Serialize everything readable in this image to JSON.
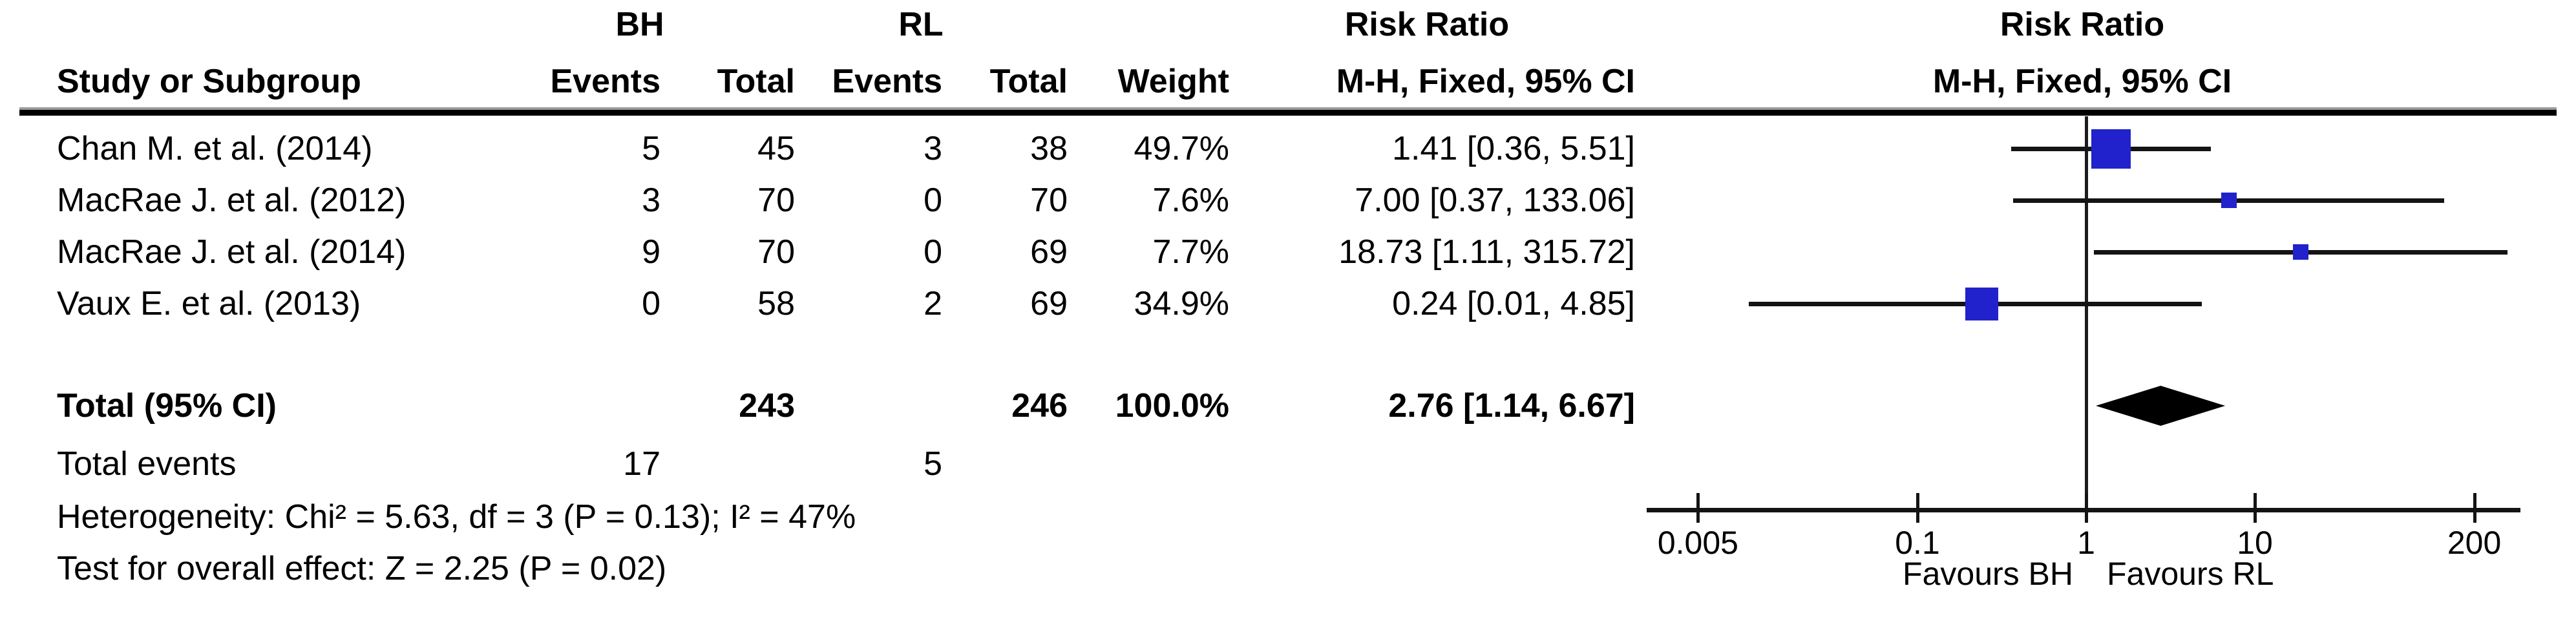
{
  "header": {
    "group1": "BH",
    "group2": "RL",
    "study_col": "Study or Subgroup",
    "events_col": "Events",
    "total_col": "Total",
    "weight_col": "Weight",
    "risk_ratio_table": "Risk Ratio",
    "mh_fixed_table": "M-H, Fixed, 95% CI",
    "risk_ratio_plot": "Risk Ratio",
    "mh_fixed_plot": "M-H, Fixed, 95% CI"
  },
  "rows": [
    {
      "study": "Chan M. et al. (2014)",
      "bh_events": "5",
      "bh_total": "45",
      "rl_events": "3",
      "rl_total": "38",
      "weight": "49.7%",
      "rr_text": "1.41 [0.36, 5.51]"
    },
    {
      "study": "MacRae J. et al. (2012)",
      "bh_events": "3",
      "bh_total": "70",
      "rl_events": "0",
      "rl_total": "70",
      "weight": "7.6%",
      "rr_text": "7.00 [0.37, 133.06]"
    },
    {
      "study": "MacRae J. et al. (2014)",
      "bh_events": "9",
      "bh_total": "70",
      "rl_events": "0",
      "rl_total": "69",
      "weight": "7.7%",
      "rr_text": "18.73 [1.11, 315.72]"
    },
    {
      "study": "Vaux E. et al. (2013)",
      "bh_events": "0",
      "bh_total": "58",
      "rl_events": "2",
      "rl_total": "69",
      "weight": "34.9%",
      "rr_text": "0.24 [0.01, 4.85]"
    }
  ],
  "total_row": {
    "label": "Total (95% CI)",
    "bh_total": "243",
    "rl_total": "246",
    "weight": "100.0%",
    "rr_text": "2.76 [1.14, 6.67]"
  },
  "total_events": {
    "label": "Total events",
    "bh": "17",
    "rl": "5"
  },
  "heterogeneity": "Heterogeneity: Chi² = 5.63, df = 3 (P = 0.13); I² = 47%",
  "overall_effect": "Test for overall effect: Z = 2.25 (P = 0.02)",
  "chart_data": {
    "type": "forest",
    "effect_measure": "Risk Ratio",
    "method": "M-H, Fixed, 95% CI",
    "x_scale": "log10",
    "axis_ticks": [
      0.005,
      0.1,
      1,
      10,
      200
    ],
    "axis_tick_labels": [
      "0.005",
      "0.1",
      "1",
      "10",
      "200"
    ],
    "null_line": 1,
    "favours_left": "Favours BH",
    "favours_right": "Favours RL",
    "studies": [
      {
        "name": "Chan M. et al. (2014)",
        "bh_events": 5,
        "bh_total": 45,
        "rl_events": 3,
        "rl_total": 38,
        "weight_pct": 49.7,
        "rr": 1.41,
        "ci_low": 0.36,
        "ci_high": 5.51
      },
      {
        "name": "MacRae J. et al. (2012)",
        "bh_events": 3,
        "bh_total": 70,
        "rl_events": 0,
        "rl_total": 70,
        "weight_pct": 7.6,
        "rr": 7.0,
        "ci_low": 0.37,
        "ci_high": 133.06
      },
      {
        "name": "MacRae J. et al. (2014)",
        "bh_events": 9,
        "bh_total": 70,
        "rl_events": 0,
        "rl_total": 69,
        "weight_pct": 7.7,
        "rr": 18.73,
        "ci_low": 1.11,
        "ci_high": 315.72
      },
      {
        "name": "Vaux E. et al. (2013)",
        "bh_events": 0,
        "bh_total": 58,
        "rl_events": 2,
        "rl_total": 69,
        "weight_pct": 34.9,
        "rr": 0.24,
        "ci_low": 0.01,
        "ci_high": 4.85
      }
    ],
    "total": {
      "rr": 2.76,
      "ci_low": 1.14,
      "ci_high": 6.67,
      "bh_total": 243,
      "rl_total": 246,
      "weight_pct": 100.0,
      "bh_events": 17,
      "rl_events": 5
    },
    "colors": {
      "square": "#2222cc",
      "diamond": "#000000",
      "line": "#141414"
    }
  }
}
